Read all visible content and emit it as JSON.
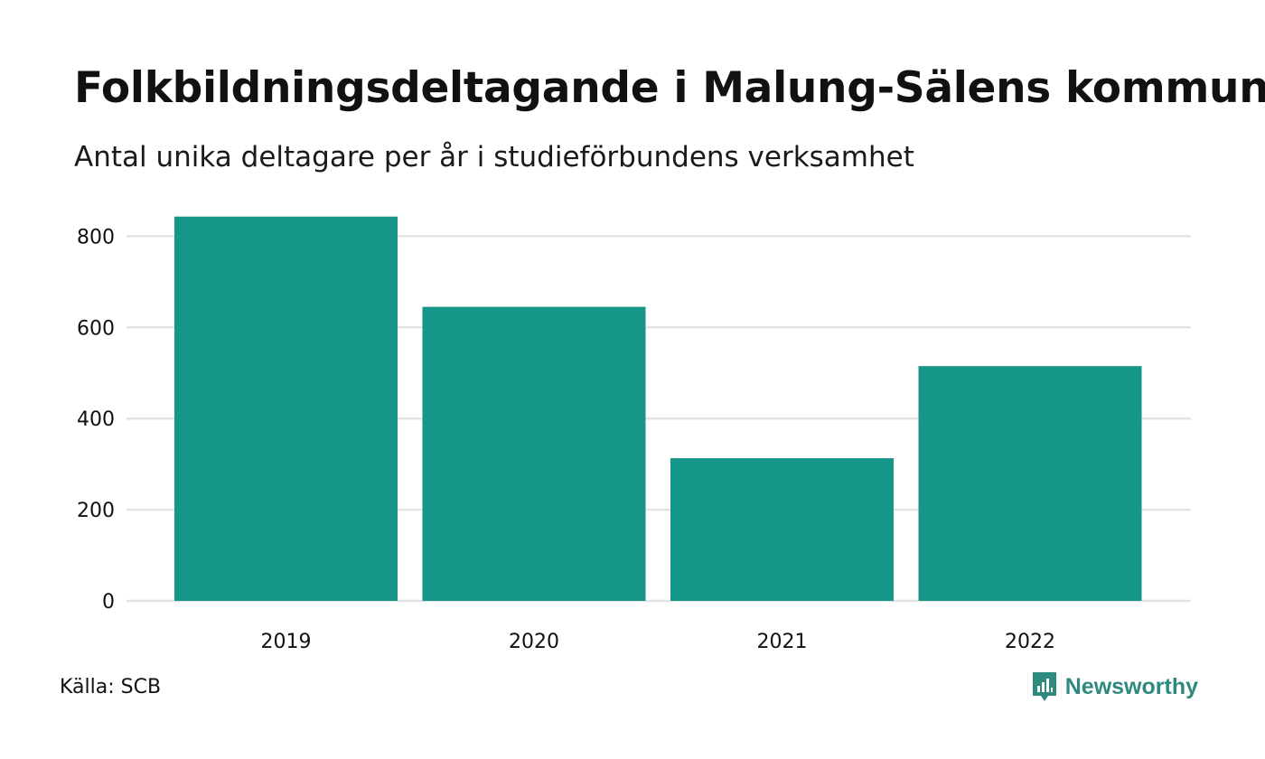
{
  "header": {
    "title": "Folkbildningsdeltagande i Malung-Sälens kommun",
    "subtitle": "Antal unika deltagare per år i studieförbundens verksamhet"
  },
  "footer": {
    "source": "Källa: SCB",
    "brand": "Newsworthy"
  },
  "colors": {
    "bar": "#159688",
    "grid": "#e3e3e3",
    "brand": "#2f8a7e"
  },
  "chart_data": {
    "type": "bar",
    "categories": [
      "2019",
      "2020",
      "2021",
      "2022"
    ],
    "values": [
      843,
      645,
      313,
      515
    ],
    "ylim": [
      0,
      800
    ],
    "yticks": [
      0,
      200,
      400,
      600,
      800
    ],
    "grid": true,
    "legend": "none"
  }
}
